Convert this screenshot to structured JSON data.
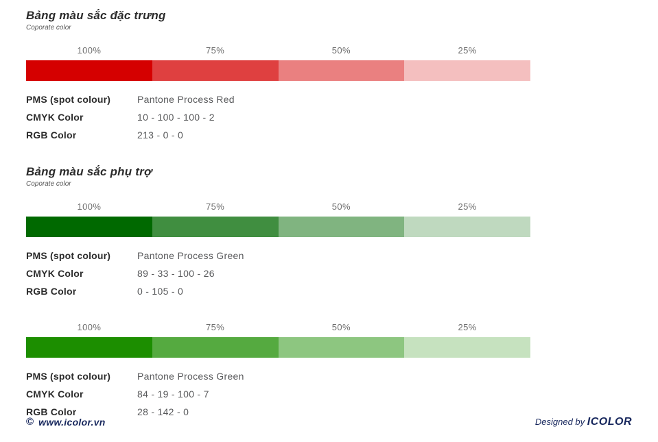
{
  "sections": [
    {
      "title": "Bảng màu sắc đặc trưng",
      "subtitle": "Coporate color",
      "blocks": [
        {
          "tints": [
            {
              "label": "100%",
              "color": "#d50000"
            },
            {
              "label": "75%",
              "color": "#df4040"
            },
            {
              "label": "50%",
              "color": "#ea8080"
            },
            {
              "label": "25%",
              "color": "#f4bfbf"
            }
          ],
          "specs": [
            {
              "label": "PMS (spot colour)",
              "value": "Pantone Process Red"
            },
            {
              "label": "CMYK Color",
              "value": "10 - 100 - 100 - 2"
            },
            {
              "label": "RGB Color",
              "value": "213 - 0 - 0"
            }
          ]
        }
      ]
    },
    {
      "title": "Bảng màu sắc phụ trợ",
      "subtitle": "Coporate color",
      "blocks": [
        {
          "tints": [
            {
              "label": "100%",
              "color": "#006900"
            },
            {
              "label": "75%",
              "color": "#408e40"
            },
            {
              "label": "50%",
              "color": "#80b480"
            },
            {
              "label": "25%",
              "color": "#bfd9bf"
            }
          ],
          "specs": [
            {
              "label": "PMS (spot colour)",
              "value": "Pantone Process Green"
            },
            {
              "label": "CMYK Color",
              "value": "89 - 33 - 100 - 26"
            },
            {
              "label": "RGB Color",
              "value": "0 - 105 - 0"
            }
          ]
        },
        {
          "tints": [
            {
              "label": "100%",
              "color": "#1c8e00"
            },
            {
              "label": "75%",
              "color": "#55aa40"
            },
            {
              "label": "50%",
              "color": "#8dc680"
            },
            {
              "label": "25%",
              "color": "#c6e2bf"
            }
          ],
          "specs": [
            {
              "label": "PMS (spot colour)",
              "value": "Pantone Process Green"
            },
            {
              "label": "CMYK Color",
              "value": "84 - 19 - 100 - 7"
            },
            {
              "label": "RGB Color",
              "value": "28 - 142 - 0"
            }
          ]
        }
      ]
    }
  ],
  "footer": {
    "copyright_symbol": "©",
    "website": "www.icolor.vn",
    "designed_by": "Designed by ",
    "brand": "ICOLOR",
    "color": "#16265c"
  }
}
